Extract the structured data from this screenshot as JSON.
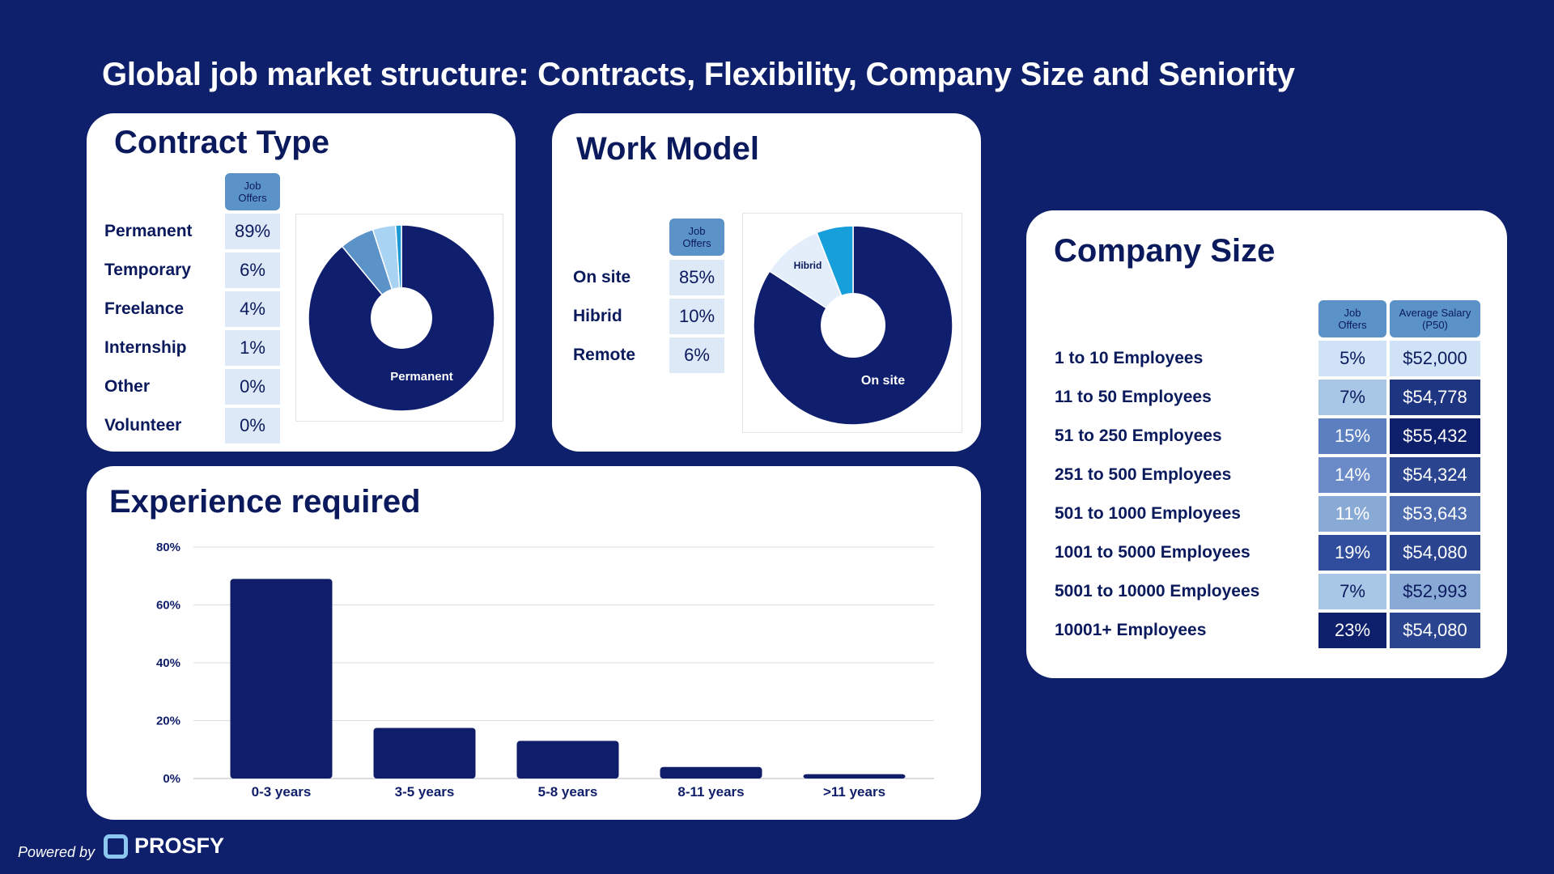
{
  "title": "Global job market structure: Contracts, Flexibility, Company Size and Seniority",
  "contract_type": {
    "title": "Contract Type",
    "header": "Job Offers",
    "rows": [
      {
        "label": "Permanent",
        "value": "89%"
      },
      {
        "label": "Temporary",
        "value": "6%"
      },
      {
        "label": "Freelance",
        "value": "4%"
      },
      {
        "label": "Internship",
        "value": "1%"
      },
      {
        "label": "Other",
        "value": "0%"
      },
      {
        "label": "Volunteer",
        "value": "0%"
      }
    ],
    "pie_label": "Permanent"
  },
  "work_model": {
    "title": "Work Model",
    "header": "Job Offers",
    "rows": [
      {
        "label": "On site",
        "value": "85%"
      },
      {
        "label": "Hibrid",
        "value": "10%"
      },
      {
        "label": "Remote",
        "value": "6%"
      }
    ],
    "pie_labels": {
      "main": "On site",
      "secondary": "Hibrid"
    }
  },
  "company_size": {
    "title": "Company Size",
    "header_offers": "Job Offers",
    "header_salary": "Average Salary (P50)",
    "rows": [
      {
        "label": "1 to 10 Employees",
        "offers": "5%",
        "salary": "$52,000"
      },
      {
        "label": "11 to 50 Employees",
        "offers": "7%",
        "salary": "$54,778"
      },
      {
        "label": "51 to 250 Employees",
        "offers": "15%",
        "salary": "$55,432"
      },
      {
        "label": "251 to 500 Employees",
        "offers": "14%",
        "salary": "$54,324"
      },
      {
        "label": "501 to 1000 Employees",
        "offers": "11%",
        "salary": "$53,643"
      },
      {
        "label": "1001 to 5000 Employees",
        "offers": "19%",
        "salary": "$54,080"
      },
      {
        "label": "5001 to 10000 Employees",
        "offers": "7%",
        "salary": "$52,993"
      },
      {
        "label": "10001+ Employees",
        "offers": "23%",
        "salary": "$54,080"
      }
    ]
  },
  "experience": {
    "title": "Experience required"
  },
  "footer": {
    "powered_by": "Powered by",
    "brand": "PROSFY"
  },
  "chart_data": [
    {
      "type": "pie",
      "categories": [
        "Permanent",
        "Temporary",
        "Freelance",
        "Internship",
        "Other",
        "Volunteer"
      ],
      "values": [
        89,
        6,
        4,
        1,
        0,
        0
      ],
      "colors": [
        "#0f1f6e",
        "#5b93c9",
        "#a9d3f2",
        "#1c9ad6",
        "#0f1f6e",
        "#0f1f6e"
      ],
      "donut": true
    },
    {
      "type": "pie",
      "categories": [
        "On site",
        "Hibrid",
        "Remote"
      ],
      "values": [
        85,
        10,
        6
      ],
      "colors": [
        "#0f1f6e",
        "#e3eefa",
        "#169fda"
      ],
      "donut": true
    },
    {
      "type": "bar",
      "categories": [
        "0-3 years",
        "3-5 years",
        "5-8 years",
        "8-11 years",
        ">11 years"
      ],
      "values": [
        69,
        17.5,
        13,
        4,
        1.5
      ],
      "ylim": [
        0,
        80
      ],
      "yticks": [
        "0%",
        "20%",
        "40%",
        "60%",
        "80%"
      ],
      "color": "#101e6a",
      "grid": true
    }
  ]
}
